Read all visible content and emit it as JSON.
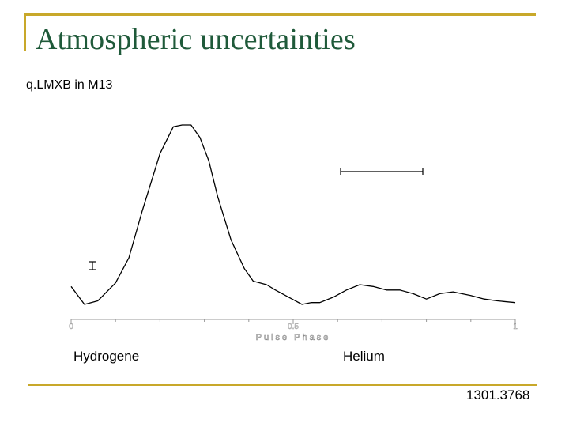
{
  "slide": {
    "title": "Atmospheric uncertainties",
    "subtitle": "q.LMXB in M13",
    "hydrogen_label": "Hydrogene",
    "helium_label": "Helium",
    "reference": "1301.3768",
    "accent_color": "#c8a82a",
    "title_color": "#1f5a3a"
  },
  "chart_data": {
    "type": "line",
    "xlabel": "Pulse Phase",
    "xticks": [
      "0",
      "0.5",
      "1"
    ],
    "xlim": [
      0,
      1
    ],
    "series": [
      {
        "x": [
          0.0,
          0.03,
          0.06,
          0.1,
          0.13,
          0.16,
          0.2,
          0.23,
          0.25,
          0.27,
          0.29,
          0.31,
          0.33,
          0.36,
          0.39,
          0.41,
          0.44,
          0.46,
          0.49,
          0.52,
          0.54,
          0.56,
          0.59,
          0.62,
          0.65,
          0.68,
          0.71,
          0.74,
          0.77,
          0.8,
          0.83,
          0.86,
          0.9,
          0.93,
          0.96,
          1.0
        ],
        "y": [
          0.1,
          0.0,
          0.02,
          0.12,
          0.26,
          0.52,
          0.84,
          0.99,
          1.0,
          1.0,
          0.93,
          0.8,
          0.6,
          0.36,
          0.2,
          0.13,
          0.11,
          0.08,
          0.04,
          0.0,
          0.01,
          0.01,
          0.04,
          0.08,
          0.11,
          0.1,
          0.08,
          0.08,
          0.06,
          0.03,
          0.06,
          0.07,
          0.05,
          0.03,
          0.02,
          0.01
        ]
      }
    ]
  }
}
